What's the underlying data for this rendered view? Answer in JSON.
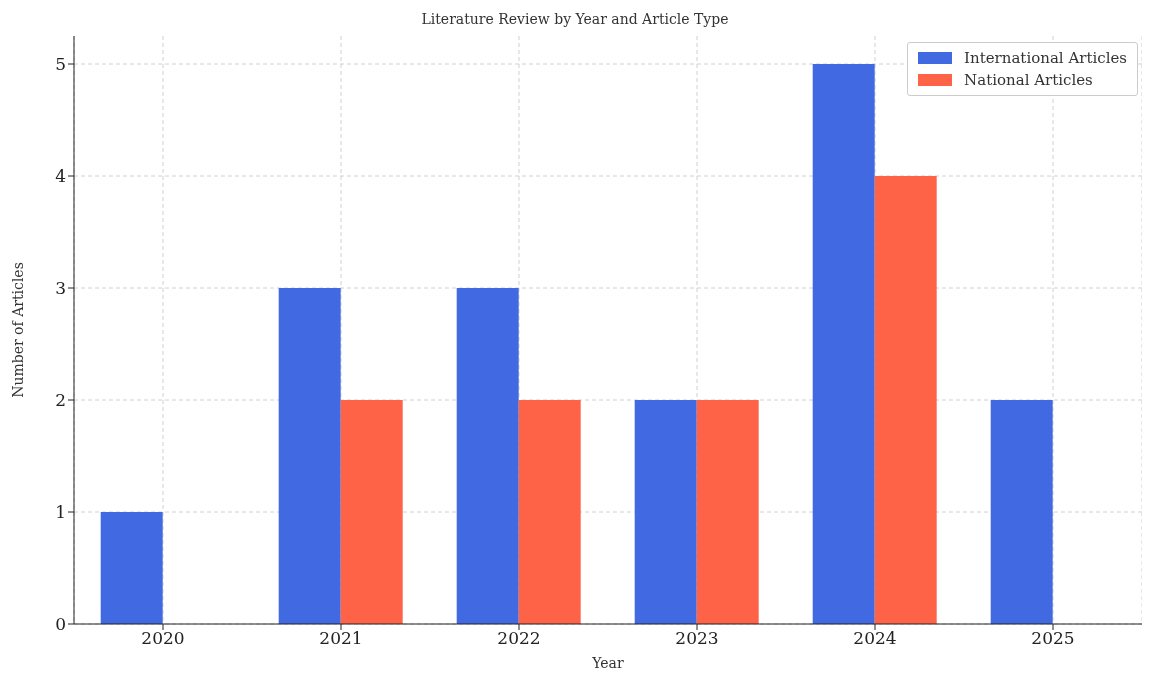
{
  "chart_data": {
    "type": "bar",
    "title": "Literature Review by Year and Article Type",
    "xlabel": "Year",
    "ylabel": "Number of Articles",
    "categories": [
      "2020",
      "2021",
      "2022",
      "2023",
      "2024",
      "2025"
    ],
    "series": [
      {
        "name": "International Articles",
        "color": "#4169e1",
        "values": [
          1,
          3,
          3,
          2,
          5,
          2
        ]
      },
      {
        "name": "National Articles",
        "color": "#ff6347",
        "values": [
          0,
          2,
          2,
          2,
          4,
          0
        ]
      }
    ],
    "ylim": [
      0,
      5.25
    ],
    "yticks": [
      0,
      1,
      2,
      3,
      4,
      5
    ],
    "grid": true,
    "legend": "top right"
  }
}
